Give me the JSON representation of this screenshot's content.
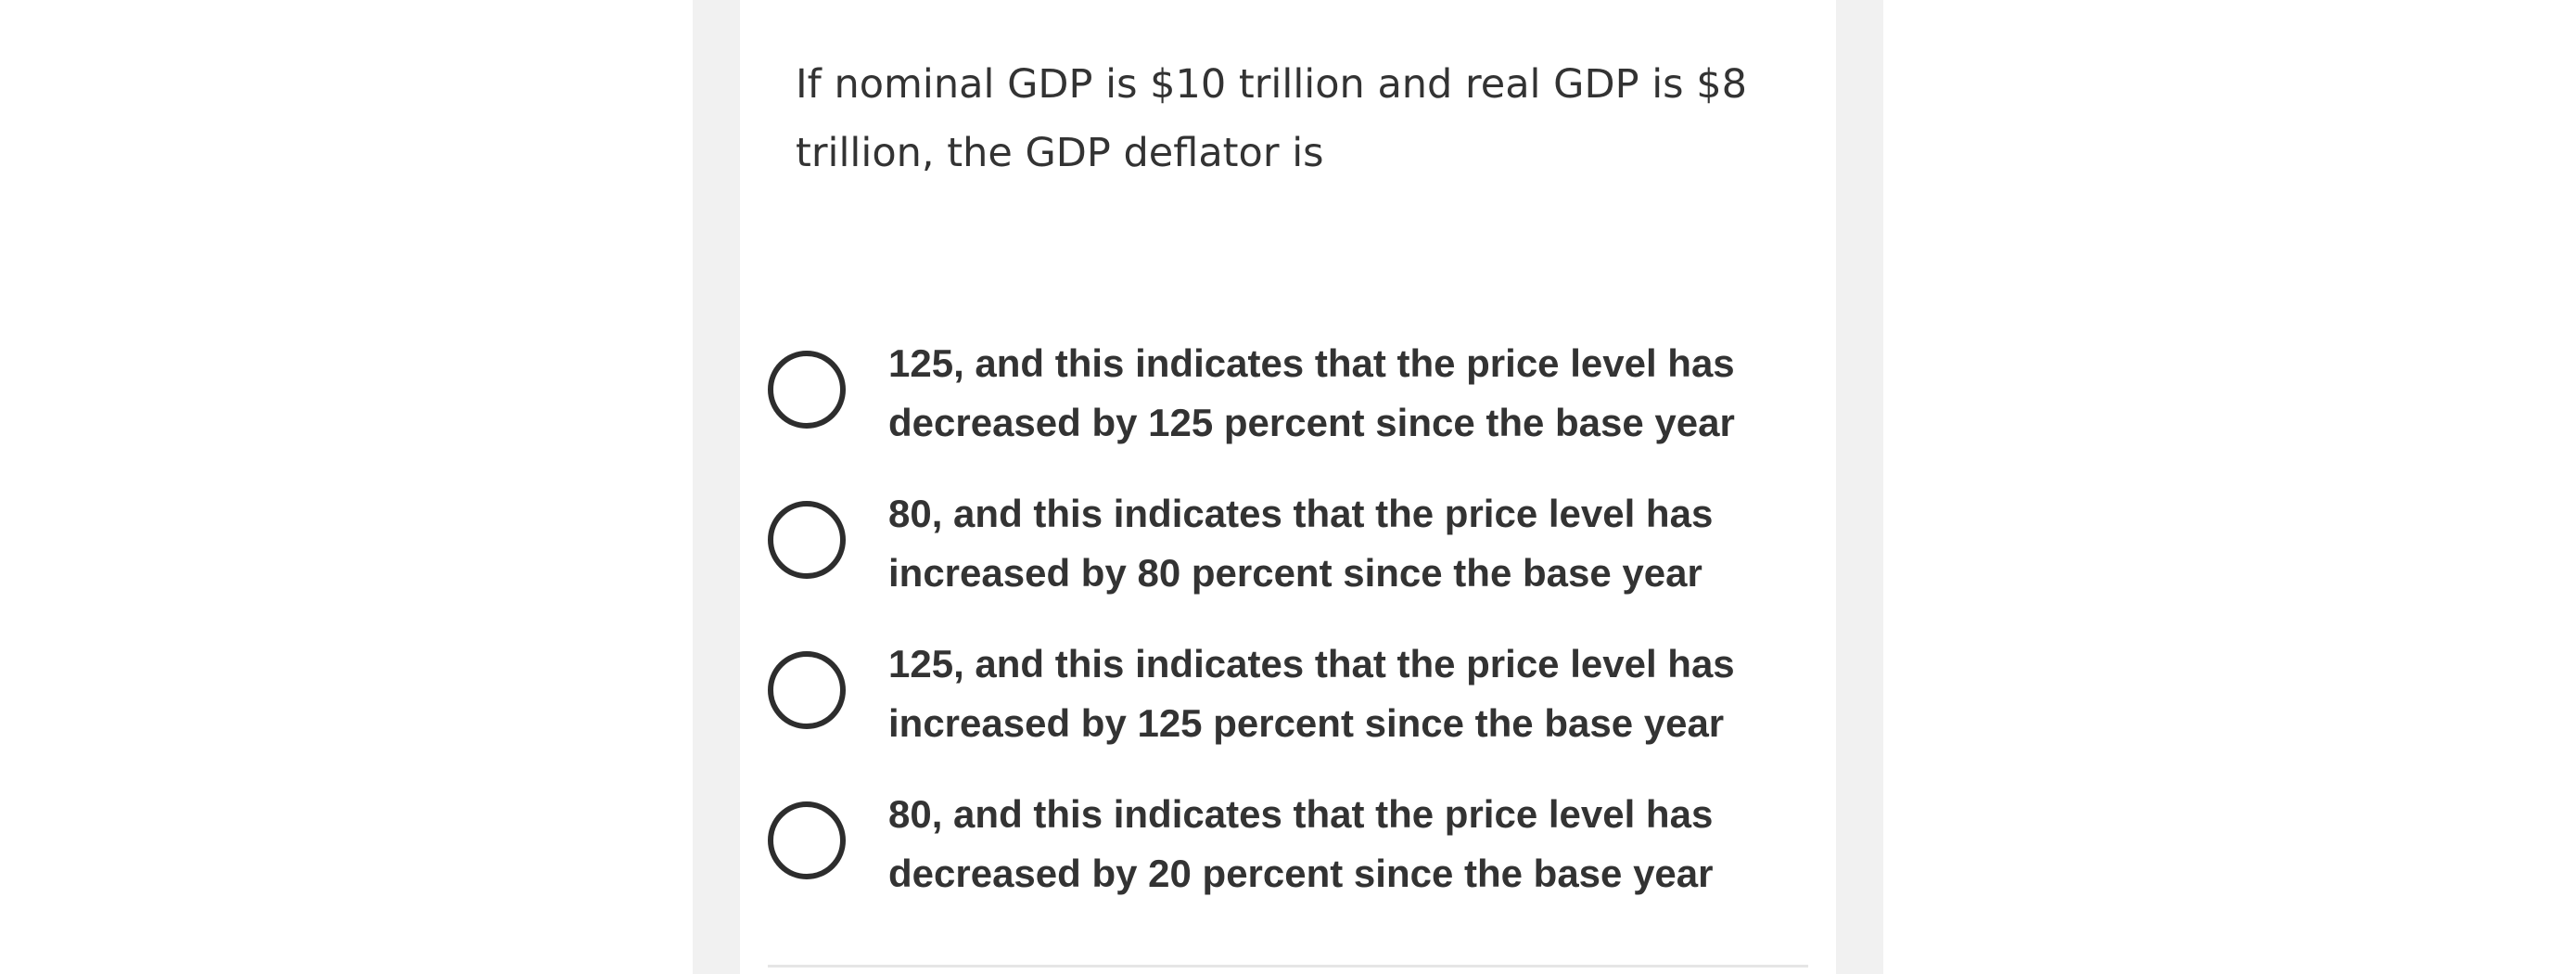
{
  "quiz": {
    "question": "If nominal GDP is $10 trillion and real GDP is $8 trillion, the GDP deflator is",
    "options": [
      {
        "label": "125, and this indicates that the price level has decreased by 125 percent since the base year"
      },
      {
        "label": "80, and this indicates that the price level has increased by 80 percent since the base year"
      },
      {
        "label": "125, and this indicates that the price level has increased by 125 percent since the base year"
      },
      {
        "label": "80, and this indicates that the price level has decreased by 20 percent since the base year"
      }
    ]
  }
}
